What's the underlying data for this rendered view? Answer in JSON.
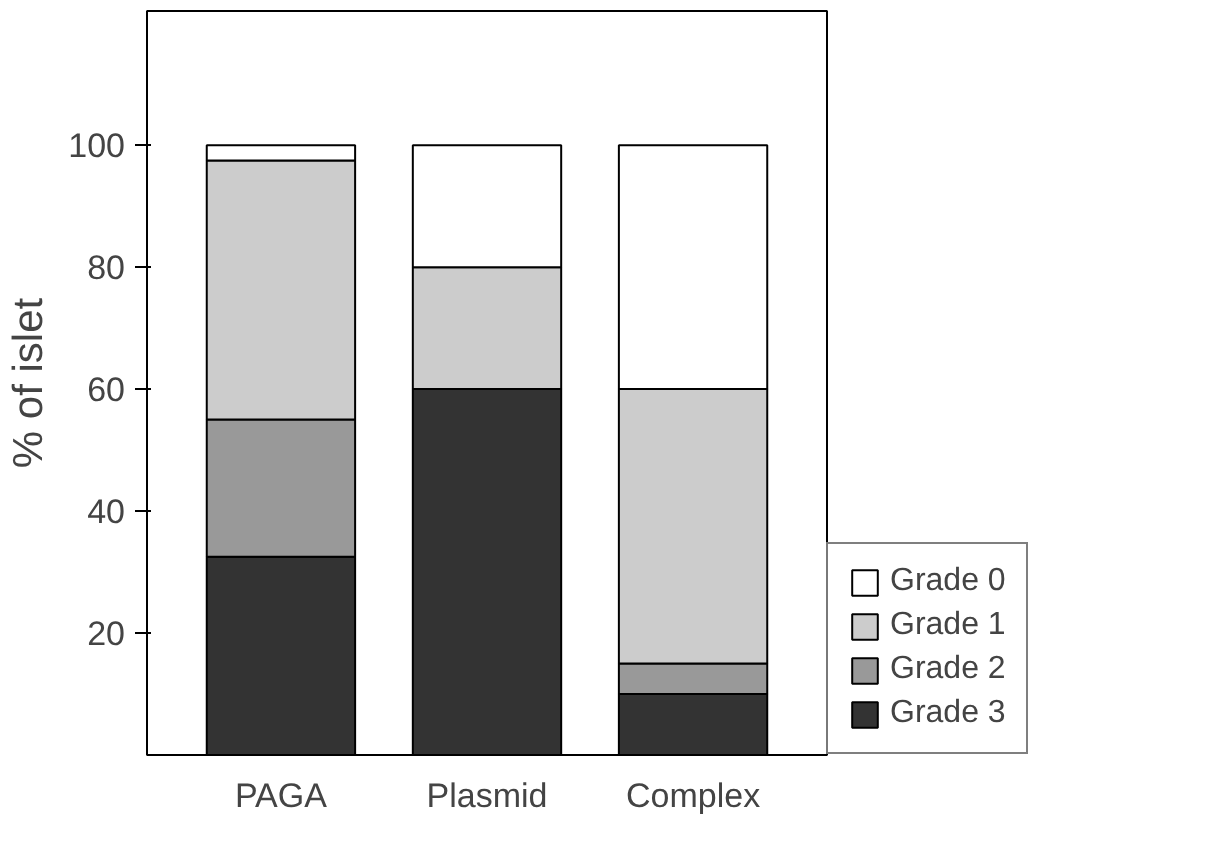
{
  "chart_data": {
    "type": "bar",
    "stacked": true,
    "ylabel": "% of islet",
    "categories": [
      "PAGA",
      "Plasmid",
      "Complex"
    ],
    "series": [
      {
        "name": "Grade 3",
        "color": "#333333",
        "values": [
          32.5,
          60,
          10
        ]
      },
      {
        "name": "Grade 2",
        "color": "#999999",
        "values": [
          22.5,
          0,
          5
        ]
      },
      {
        "name": "Grade 1",
        "color": "#cccccc",
        "values": [
          42.5,
          20,
          45
        ]
      },
      {
        "name": "Grade 0",
        "color": "#ffffff",
        "values": [
          2.5,
          20,
          40
        ]
      }
    ],
    "ylim": [
      0,
      122
    ],
    "yticks": [
      20,
      40,
      60,
      80,
      100
    ],
    "grid": false,
    "legend": "bottom right"
  }
}
